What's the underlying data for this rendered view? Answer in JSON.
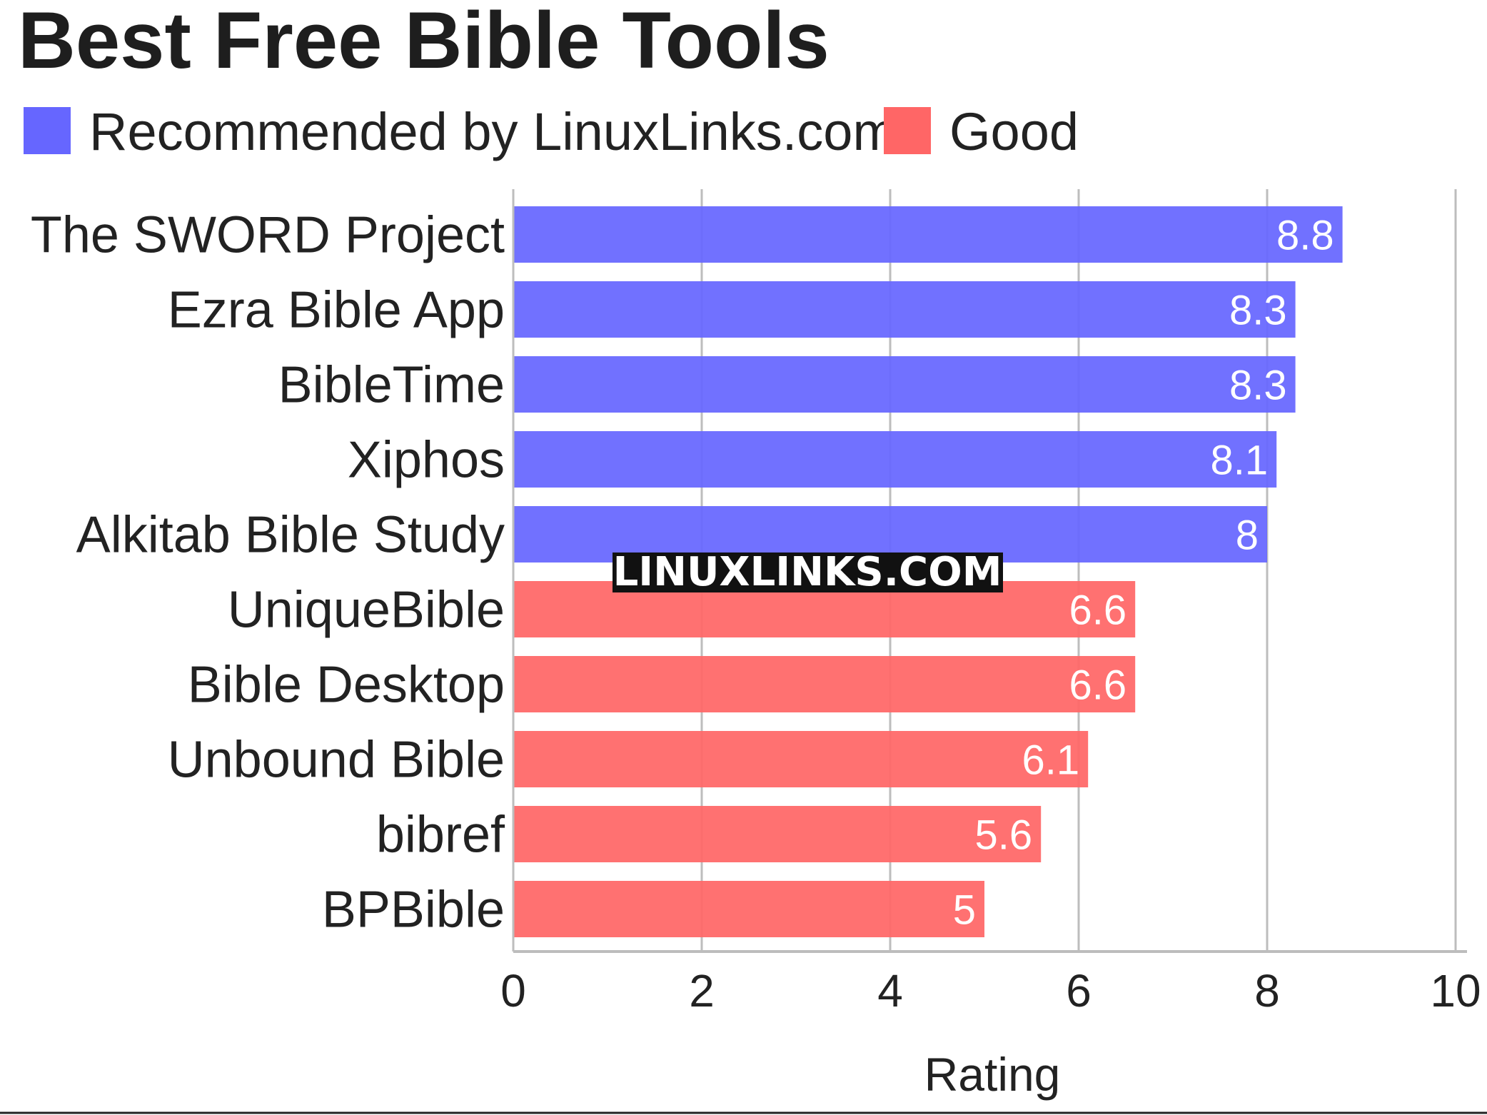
{
  "chart_data": {
    "type": "bar",
    "orientation": "horizontal",
    "title": "Best Free Bible Tools",
    "xlabel": "Rating",
    "ylabel": "",
    "xlim": [
      0,
      10
    ],
    "xticks": [
      "0",
      "2",
      "4",
      "6",
      "8",
      "10"
    ],
    "grid": true,
    "legend_position": "top-left",
    "legend": [
      {
        "name": "Recommended by LinuxLinks.com",
        "color": "#6666ff"
      },
      {
        "name": "Good",
        "color": "#ff6666"
      }
    ],
    "categories": [
      "The SWORD Project",
      "Ezra Bible App",
      "BibleTime",
      "Xiphos",
      "Alkitab Bible Study",
      "UniqueBible",
      "Bible Desktop",
      "Unbound Bible",
      "bibref",
      "BPBible"
    ],
    "values": [
      8.8,
      8.3,
      8.3,
      8.1,
      8,
      6.6,
      6.6,
      6.1,
      5.6,
      5
    ],
    "value_labels": [
      "8.8",
      "8.3",
      "8.3",
      "8.1",
      "8",
      "6.6",
      "6.6",
      "6.1",
      "5.6",
      "5"
    ],
    "groups": [
      "Recommended by LinuxLinks.com",
      "Recommended by LinuxLinks.com",
      "Recommended by LinuxLinks.com",
      "Recommended by LinuxLinks.com",
      "Recommended by LinuxLinks.com",
      "Good",
      "Good",
      "Good",
      "Good",
      "Good"
    ]
  },
  "watermark": "LINUXLINKS.COM"
}
